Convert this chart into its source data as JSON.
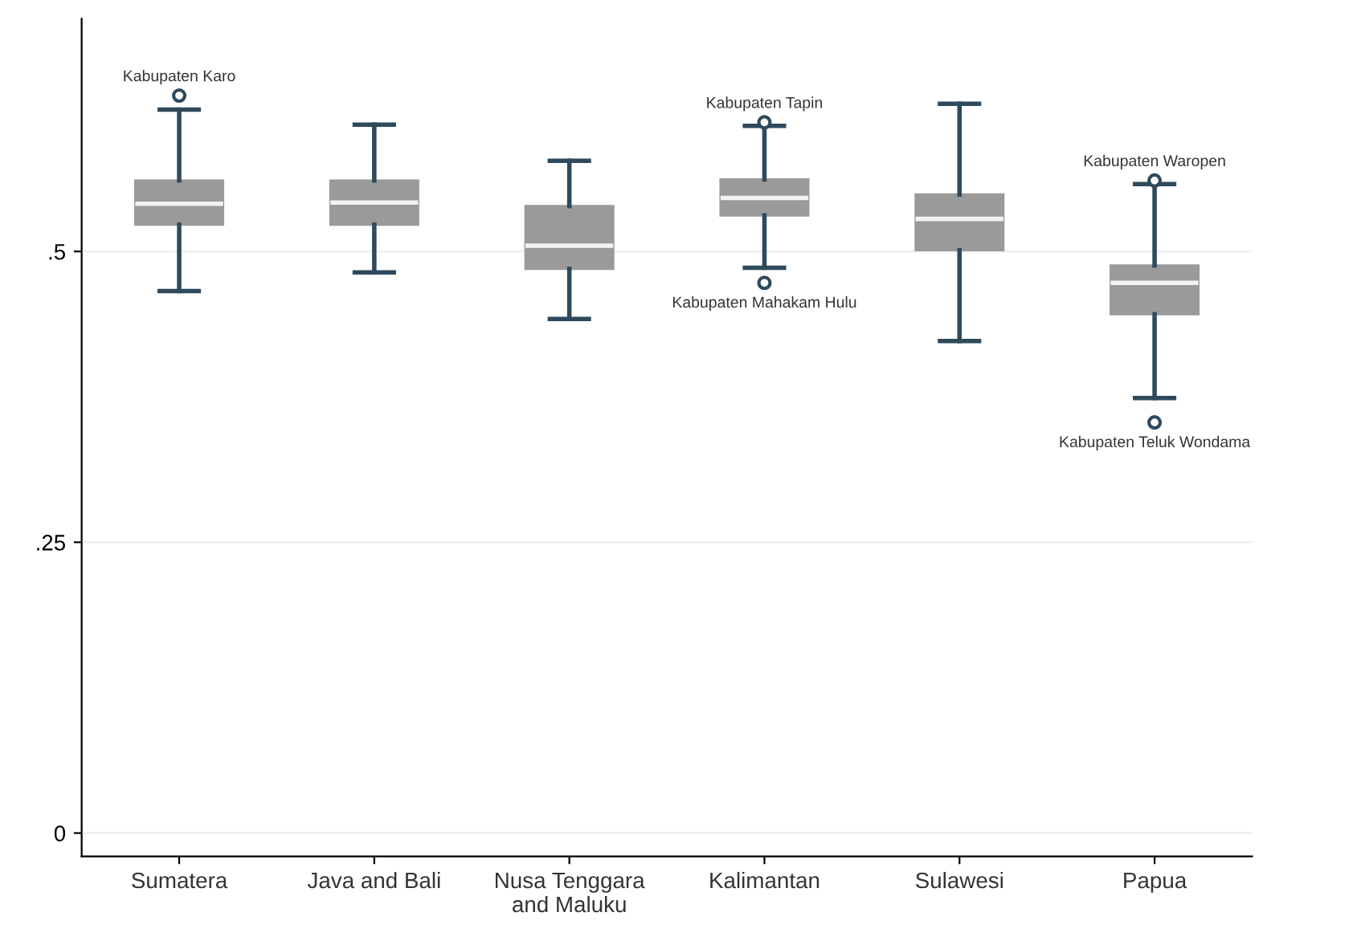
{
  "chart_data": {
    "type": "box",
    "categories": [
      "Sumatera",
      "Java and Bali",
      "Nusa Tenggara\nand Maluku",
      "Kalimantan",
      "Sulawesi",
      "Papua"
    ],
    "boxes": [
      {
        "low": 0.466,
        "q1": 0.523,
        "median": 0.541,
        "q3": 0.561,
        "high": 0.622,
        "outliers": [
          0.634
        ]
      },
      {
        "low": 0.482,
        "q1": 0.523,
        "median": 0.542,
        "q3": 0.561,
        "high": 0.609
      },
      {
        "low": 0.442,
        "q1": 0.485,
        "median": 0.505,
        "q3": 0.539,
        "high": 0.578
      },
      {
        "low": 0.486,
        "q1": 0.531,
        "median": 0.546,
        "q3": 0.562,
        "high": 0.608,
        "outliers": [
          0.611,
          0.473
        ]
      },
      {
        "low": 0.423,
        "q1": 0.501,
        "median": 0.528,
        "q3": 0.549,
        "high": 0.627
      },
      {
        "low": 0.374,
        "q1": 0.446,
        "median": 0.473,
        "q3": 0.488,
        "high": 0.558,
        "outliers": [
          0.561,
          0.353
        ]
      }
    ],
    "color": "#9a9a9a",
    "ylim": [
      -0.02,
      0.7
    ],
    "yticks": [
      {
        "value": 0,
        "label": "0"
      },
      {
        "value": 0.25,
        "label": ".25"
      },
      {
        "value": 0.5,
        "label": ".5"
      }
    ],
    "grid": "y",
    "annotations": [
      "Kabupaten Karo",
      "Kabupaten Tapin",
      "Kabupaten Mahakam Hulu",
      "Kabupaten Waropen",
      "Kabupaten Teluk Wondama"
    ]
  }
}
